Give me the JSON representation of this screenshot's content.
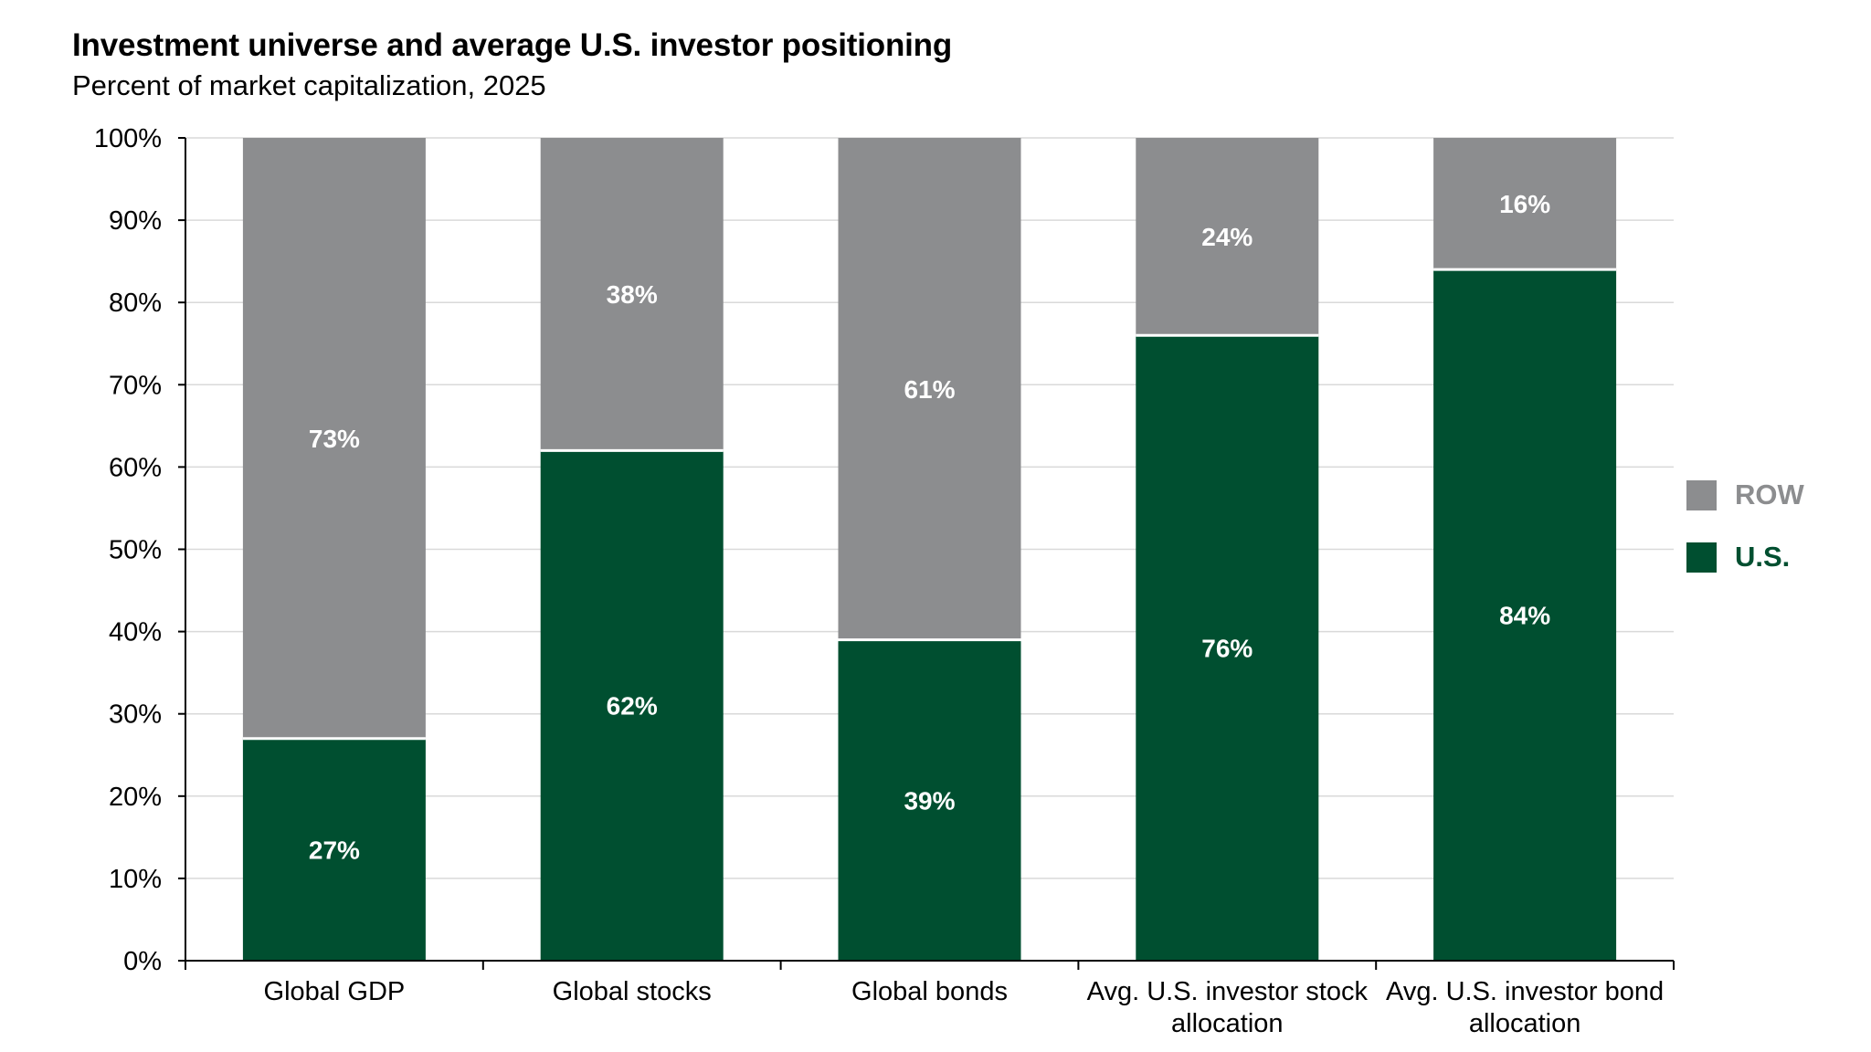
{
  "title": "Investment universe and average U.S. investor positioning",
  "subtitle": "Percent of market capitalization,  2025",
  "legend": [
    {
      "label": "ROW",
      "color": "#8c8d8f"
    },
    {
      "label": "U.S.",
      "color": "#004f30"
    }
  ],
  "chart_data": {
    "type": "bar",
    "stacked": true,
    "categories": [
      [
        "Global GDP"
      ],
      [
        "Global stocks"
      ],
      [
        "Global bonds"
      ],
      [
        "Avg. U.S. investor stock",
        "allocation"
      ],
      [
        "Avg. U.S. investor bond",
        "allocation"
      ]
    ],
    "series": [
      {
        "name": "U.S.",
        "values": [
          27,
          62,
          39,
          76,
          84
        ],
        "labels": [
          "27%",
          "62%",
          "39%",
          "76%",
          "84%"
        ],
        "color": "#004f30"
      },
      {
        "name": "ROW",
        "values": [
          73,
          38,
          61,
          24,
          16
        ],
        "labels": [
          "73%",
          "38%",
          "61%",
          "24%",
          "16%"
        ],
        "color": "#8c8d8f"
      }
    ],
    "y_ticks": [
      "0%",
      "10%",
      "20%",
      "30%",
      "40%",
      "50%",
      "60%",
      "70%",
      "80%",
      "90%",
      "100%"
    ],
    "ylim": [
      0,
      100
    ],
    "grid": true,
    "legend_position": "right"
  }
}
